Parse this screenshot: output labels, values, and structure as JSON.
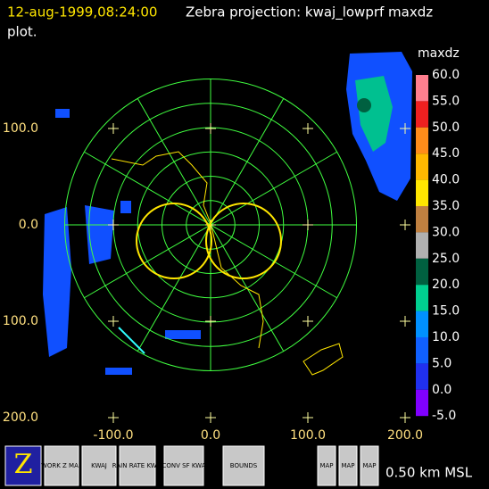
{
  "header": {
    "time": "12-aug-1999,08:24:00",
    "title": "Zebra projection: kwaj_lowprf maxdz",
    "title_cont": "plot."
  },
  "y_labels": [
    "100.0",
    "0.0",
    "100.0",
    "200.0"
  ],
  "x_labels": [
    "-100.0",
    "0.0",
    "100.0",
    "200.0"
  ],
  "colorbar": {
    "field": "maxdz",
    "labels": [
      "60.0",
      "55.0",
      "50.0",
      "45.0",
      "40.0",
      "35.0",
      "30.0",
      "25.0",
      "20.0",
      "15.0",
      "10.0",
      "5.0",
      "0.0",
      "-5.0"
    ],
    "colors": [
      "#ff7f8f",
      "#ee2020",
      "#ff8c1a",
      "#ffb800",
      "#ffe600",
      "#c08040",
      "#b0b0b0",
      "#006040",
      "#00d090",
      "#0090ff",
      "#1060ff",
      "#2030f0",
      "#8000ff"
    ]
  },
  "toolbar": {
    "buttons": [
      "Z",
      "WORK Z MAP",
      "KWAJ",
      "RAIN RATE KWAJ",
      "CONV SF KWA",
      "BOUNDS",
      "MAP",
      "MAP",
      "MAP"
    ]
  },
  "footer": "0.50 km MSL"
}
